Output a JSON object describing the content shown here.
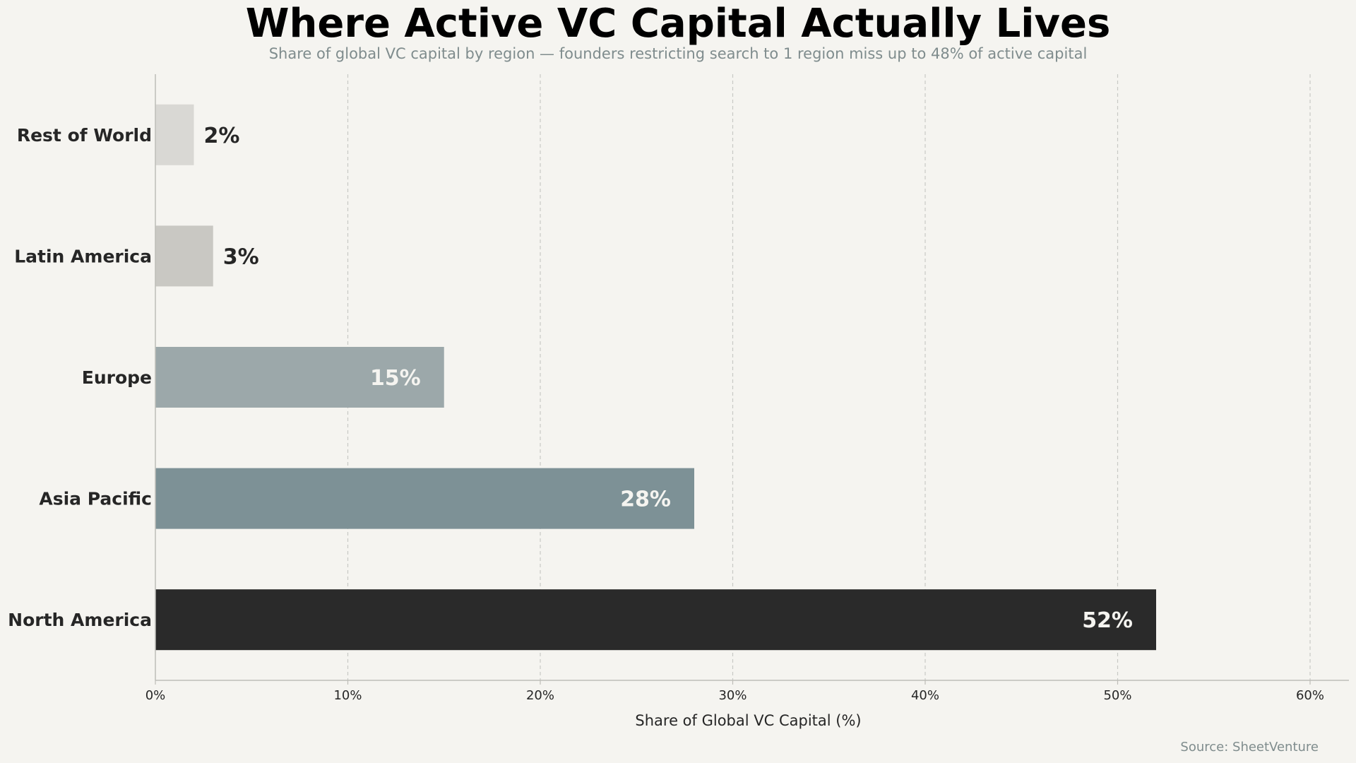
{
  "header": {
    "title": "Where Active VC Capital Actually Lives",
    "subtitle": "Share of global VC capital by region — founders restricting search to 1 region miss up to 48% of active capital"
  },
  "footer": {
    "source": "Source: SheetVenture"
  },
  "colors": {
    "background": "#f5f4f0",
    "grid": "#c8c8c4",
    "axis": "#bdbdb8",
    "label_dark": "#262626",
    "label_light": "#f5f4f0"
  },
  "chart_data": {
    "type": "bar",
    "orientation": "horizontal",
    "categories": [
      "North America",
      "Asia Pacific",
      "Europe",
      "Latin America",
      "Rest of World"
    ],
    "values": [
      52,
      28,
      15,
      3,
      2
    ],
    "value_labels": [
      "52%",
      "28%",
      "15%",
      "3%",
      "2%"
    ],
    "bar_colors": [
      "#2a2a2a",
      "#7d9196",
      "#9ca8aa",
      "#c9c8c3",
      "#d9d8d4"
    ],
    "title": "Where Active VC Capital Actually Lives",
    "subtitle": "Share of global VC capital by region — founders restricting search to 1 region miss up to 48% of active capital",
    "xlabel": "Share of Global VC Capital (%)",
    "ylabel": "",
    "xlim": [
      0,
      62
    ],
    "xticks": [
      0,
      10,
      20,
      30,
      40,
      50,
      60
    ],
    "xtick_labels": [
      "0%",
      "10%",
      "20%",
      "30%",
      "40%",
      "50%",
      "60%"
    ],
    "grid": "vertical dashed",
    "legend": "none",
    "source": "Source: SheetVenture"
  }
}
